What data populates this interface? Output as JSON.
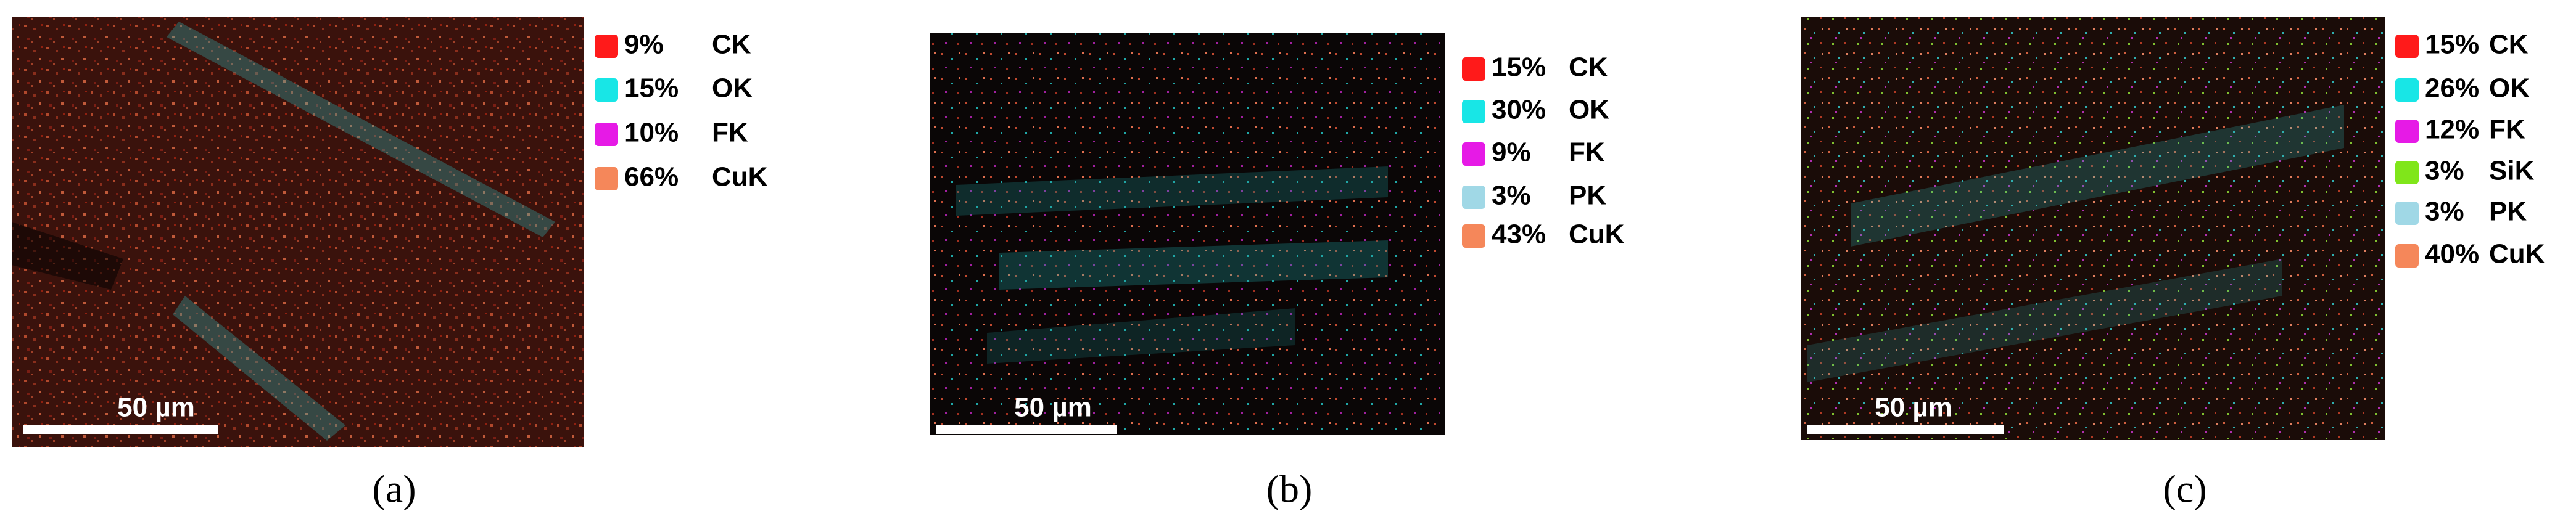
{
  "panels": [
    {
      "caption": "(a)",
      "scale_bar": "50 µm",
      "legend": [
        {
          "percent": "9%",
          "element": "CK",
          "color": "#ff1a1a"
        },
        {
          "percent": "15%",
          "element": "OK",
          "color": "#18e6e6"
        },
        {
          "percent": "10%",
          "element": "FK",
          "color": "#e61ae6"
        },
        {
          "percent": "66%",
          "element": "CuK",
          "color": "#f5875a"
        }
      ]
    },
    {
      "caption": "(b)",
      "scale_bar": "50 µm",
      "legend": [
        {
          "percent": "15%",
          "element": "CK",
          "color": "#ff1a1a"
        },
        {
          "percent": "30%",
          "element": "OK",
          "color": "#18e6e6"
        },
        {
          "percent": "9%",
          "element": "FK",
          "color": "#e61ae6"
        },
        {
          "percent": "3%",
          "element": "PK",
          "color": "#a0d8e6"
        },
        {
          "percent": "43%",
          "element": "CuK",
          "color": "#f5875a"
        }
      ]
    },
    {
      "caption": "(c)",
      "scale_bar": "50 µm",
      "legend": [
        {
          "percent": "15%",
          "element": "CK",
          "color": "#ff1a1a"
        },
        {
          "percent": "26%",
          "element": "OK",
          "color": "#18e6e6"
        },
        {
          "percent": "12%",
          "element": "FK",
          "color": "#e61ae6"
        },
        {
          "percent": "3%",
          "element": "SiK",
          "color": "#80e61a"
        },
        {
          "percent": "3%",
          "element": "PK",
          "color": "#a0d8e6"
        },
        {
          "percent": "40%",
          "element": "CuK",
          "color": "#f5875a"
        }
      ]
    }
  ]
}
